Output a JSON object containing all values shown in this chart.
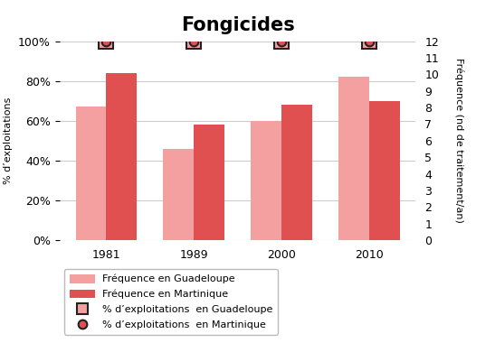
{
  "title": "Fongicides",
  "years": [
    1981,
    1989,
    2000,
    2010
  ],
  "freq_guadeloupe": [
    67,
    46,
    60,
    82
  ],
  "freq_martinique": [
    84,
    58,
    68,
    70
  ],
  "color_guadeloupe": "#F4A0A0",
  "color_martinique": "#E05050",
  "left_ylabel": "% d’exploitations",
  "right_ylabel": "Fréquence (nd de traitement/an)",
  "ylim_left": [
    0,
    100
  ],
  "ylim_right": [
    0,
    12
  ],
  "left_yticks": [
    0,
    20,
    40,
    60,
    80,
    100
  ],
  "right_yticks": [
    0,
    1,
    2,
    3,
    4,
    5,
    6,
    7,
    8,
    9,
    10,
    11,
    12
  ],
  "legend_freq_guadeloupe": "Fréquence en Guadeloupe",
  "legend_freq_martinique": "Fréquence en Martinique",
  "legend_pct_guadeloupe": "% d’exploitations  en Guadeloupe",
  "legend_pct_martinique": "% d’exploitations  en Martinique",
  "background_color": "#ffffff",
  "bar_width": 0.35,
  "grid_color": "#cccccc",
  "marker_square_facecolor": "#F4A0A0",
  "marker_square_edgecolor": "#222222",
  "marker_circle_facecolor": "#E05050",
  "marker_circle_edgecolor": "#222222",
  "title_fontsize": 15,
  "label_fontsize": 8,
  "tick_fontsize": 9,
  "legend_fontsize": 8
}
